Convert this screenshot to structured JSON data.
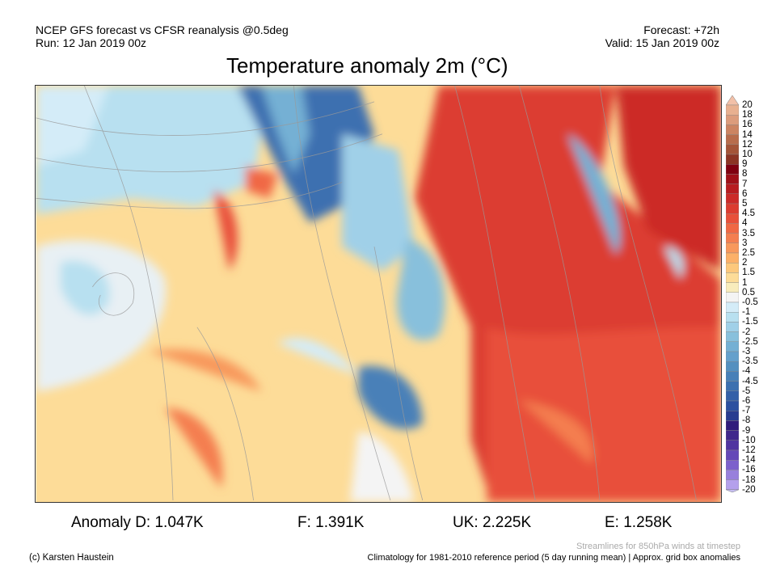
{
  "header": {
    "line1": "NCEP GFS forecast vs CFSR reanalysis @0.5deg",
    "line2": "Run: 12 Jan 2019 00z",
    "forecast": "Forecast: +72h",
    "valid": "Valid: 15 Jan 2019 00z",
    "title": "Temperature anomaly 2m (°C)"
  },
  "anomalies": [
    "Anomaly D: 1.047K",
    "F: 1.391K",
    "UK: 2.225K",
    "E: 1.258K"
  ],
  "footer": {
    "credit": "(c) Karsten Haustein",
    "streamlines": "Streamlines for 850hPa winds at timestep",
    "climatology": "Climatology for 1981-2010 reference period (5 day running mean) | Approx. grid box anomalies"
  },
  "colorbar": {
    "labels": [
      "20",
      "18",
      "16",
      "14",
      "12",
      "10",
      "9",
      "8",
      "7",
      "6",
      "5",
      "4.5",
      "4",
      "3.5",
      "3",
      "2.5",
      "2",
      "1.5",
      "1",
      "0.5",
      "-0.5",
      "-1",
      "-1.5",
      "-2",
      "-2.5",
      "-3",
      "-3.5",
      "-4",
      "-4.5",
      "-5",
      "-6",
      "-7",
      "-8",
      "-9",
      "-10",
      "-12",
      "-14",
      "-16",
      "-18",
      "-20"
    ],
    "colors": [
      "#e8b090",
      "#dc9c7c",
      "#cc8462",
      "#b86c4c",
      "#a45438",
      "#8c3424",
      "#800010",
      "#a01018",
      "#b81c20",
      "#cc2a28",
      "#dc3c30",
      "#e8503a",
      "#f06844",
      "#f47e50",
      "#f8985c",
      "#fcb068",
      "#fdc87c",
      "#fddc98",
      "#f8ecbc",
      "#f4f4f4",
      "#d4ecf8",
      "#b8e0f0",
      "#a0d0e8",
      "#88c0dc",
      "#74b0d4",
      "#64a0cc",
      "#5490c0",
      "#4880b8",
      "#3c70b0",
      "#3460a8",
      "#2c50a0",
      "#283c90",
      "#301c7c",
      "#40288c",
      "#5034a0",
      "#6448b8",
      "#7c60cc",
      "#9880dc",
      "#b4a0ec"
    ],
    "top_arrow": "#f2c0a8",
    "bottom_arrow": "#c8c0f4"
  }
}
